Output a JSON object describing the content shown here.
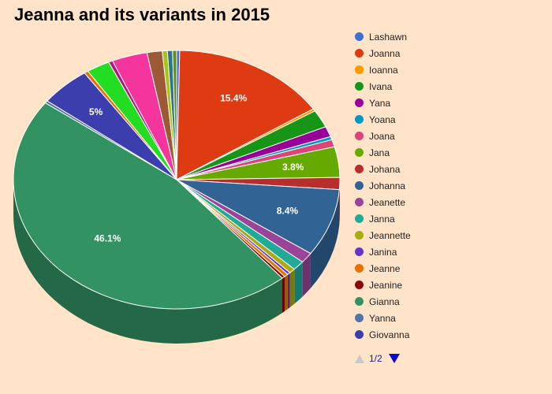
{
  "chart_data": {
    "type": "pie",
    "title": "Jeanna and its variants in 2015",
    "slices": [
      {
        "name": "Lashawn",
        "value": 0.3,
        "color": "#3f6fd1",
        "label": ""
      },
      {
        "name": "Joanna",
        "value": 15.4,
        "color": "#de3b12",
        "label": "15.4%"
      },
      {
        "name": "Ioanna",
        "value": 0.3,
        "color": "#ff9900",
        "label": ""
      },
      {
        "name": "Ivana",
        "value": 2.2,
        "color": "#169516",
        "label": ""
      },
      {
        "name": "Yana",
        "value": 1.3,
        "color": "#990099",
        "label": ""
      },
      {
        "name": "Yoana",
        "value": 0.4,
        "color": "#0099c6",
        "label": ""
      },
      {
        "name": "Joana",
        "value": 0.9,
        "color": "#dd4477",
        "label": ""
      },
      {
        "name": "Jana",
        "value": 3.8,
        "color": "#66aa00",
        "label": "3.8%"
      },
      {
        "name": "Johana",
        "value": 1.5,
        "color": "#b82e2e",
        "label": ""
      },
      {
        "name": "Johanna",
        "value": 8.4,
        "color": "#316395",
        "label": "8.4%"
      },
      {
        "name": "Jeanette",
        "value": 1.3,
        "color": "#994499",
        "label": ""
      },
      {
        "name": "Janna",
        "value": 1.2,
        "color": "#22aa99",
        "label": ""
      },
      {
        "name": "Jeannette",
        "value": 0.6,
        "color": "#aaaa11",
        "label": ""
      },
      {
        "name": "Janina",
        "value": 0.3,
        "color": "#6633cc",
        "label": ""
      },
      {
        "name": "Jeanne",
        "value": 0.4,
        "color": "#e67300",
        "label": ""
      },
      {
        "name": "Jeanine",
        "value": 0.3,
        "color": "#8b0707",
        "label": ""
      },
      {
        "name": "Gianna",
        "value": 46.1,
        "color": "#329262",
        "label": "46.1%"
      },
      {
        "name": "Yanna",
        "value": 0.3,
        "color": "#5574a6",
        "label": ""
      },
      {
        "name": "Giovanna",
        "value": 5.0,
        "color": "#3b3eac",
        "label": "5%"
      },
      {
        "name": "",
        "value": 0.4,
        "color": "#e67300",
        "label": ""
      },
      {
        "name": "",
        "value": 2.3,
        "color": "#22dd22",
        "label": ""
      },
      {
        "name": "",
        "value": 0.4,
        "color": "#b91383",
        "label": ""
      },
      {
        "name": "",
        "value": 3.5,
        "color": "#f4359e",
        "label": ""
      },
      {
        "name": "",
        "value": 1.5,
        "color": "#9c5935",
        "label": ""
      },
      {
        "name": "",
        "value": 0.5,
        "color": "#a9c413",
        "label": ""
      },
      {
        "name": "",
        "value": 0.5,
        "color": "#2a778d",
        "label": ""
      },
      {
        "name": "",
        "value": 0.4,
        "color": "#668d1c",
        "label": ""
      }
    ],
    "legend_position": "right",
    "legend_page": "1/2"
  }
}
